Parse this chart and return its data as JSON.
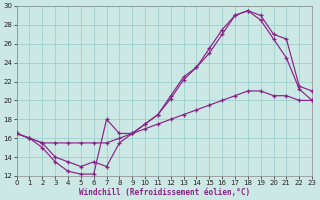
{
  "bg_color": "#cce8e4",
  "grid_color": "#9ecfcc",
  "line_color": "#882288",
  "xlim": [
    0,
    23
  ],
  "ylim": [
    12,
    30
  ],
  "xticks": [
    0,
    1,
    2,
    3,
    4,
    5,
    6,
    7,
    8,
    9,
    10,
    11,
    12,
    13,
    14,
    15,
    16,
    17,
    18,
    19,
    20,
    21,
    22,
    23
  ],
  "yticks": [
    12,
    14,
    16,
    18,
    20,
    22,
    24,
    26,
    28,
    30
  ],
  "xlabel": "Windchill (Refroidissement éolien,°C)",
  "line1_x": [
    0,
    1,
    2,
    3,
    4,
    5,
    6,
    7,
    8,
    9,
    10,
    11,
    12,
    13,
    14,
    15,
    16,
    17,
    18,
    19,
    20,
    21,
    22,
    23
  ],
  "line1_y": [
    16.5,
    16.0,
    15.0,
    13.5,
    12.5,
    12.2,
    12.2,
    18.0,
    16.5,
    16.5,
    17.5,
    18.5,
    20.2,
    22.2,
    23.5,
    25.0,
    27.0,
    29.0,
    29.5,
    28.5,
    26.5,
    24.5,
    21.2,
    20.0
  ],
  "line2_x": [
    0,
    1,
    2,
    3,
    4,
    5,
    6,
    7,
    8,
    9,
    10,
    11,
    12,
    13,
    14,
    15,
    16,
    17,
    18,
    19,
    20,
    21,
    22,
    23
  ],
  "line2_y": [
    16.5,
    16.0,
    15.5,
    14.0,
    13.5,
    13.0,
    13.5,
    13.0,
    15.5,
    16.5,
    17.5,
    18.5,
    20.5,
    22.5,
    23.5,
    25.5,
    27.5,
    29.0,
    29.5,
    29.0,
    27.0,
    26.5,
    21.5,
    21.0
  ],
  "line3_x": [
    0,
    1,
    2,
    3,
    4,
    5,
    6,
    7,
    8,
    9,
    10,
    11,
    12,
    13,
    14,
    15,
    16,
    17,
    18,
    19,
    20,
    21,
    22,
    23
  ],
  "line3_y": [
    16.5,
    16.0,
    15.5,
    15.5,
    15.5,
    15.5,
    15.5,
    15.5,
    16.0,
    16.5,
    17.0,
    17.5,
    18.0,
    18.5,
    19.0,
    19.5,
    20.0,
    20.5,
    21.0,
    21.0,
    20.5,
    20.5,
    20.0,
    20.0
  ]
}
